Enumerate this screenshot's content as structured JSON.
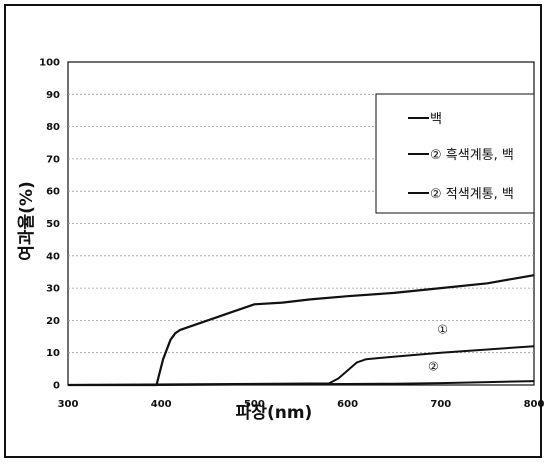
{
  "chart_data": {
    "type": "line",
    "xlabel": "파장(nm)",
    "ylabel": "여과율(%)",
    "xlim": [
      300,
      800
    ],
    "ylim": [
      0,
      100
    ],
    "xticks": [
      "300",
      "400",
      "500",
      "600",
      "700",
      "800"
    ],
    "yticks": [
      "0",
      "10",
      "20",
      "30",
      "40",
      "50",
      "60",
      "70",
      "80",
      "90",
      "100"
    ],
    "grid": "horizontal-dashed",
    "legend_position": "top-right",
    "series": [
      {
        "name": "백",
        "x": [
          300,
          395,
          402,
          410,
          415,
          420,
          440,
          460,
          480,
          500,
          530,
          560,
          600,
          650,
          700,
          750,
          780,
          800
        ],
        "y": [
          0,
          0,
          8,
          14,
          16,
          17,
          19,
          21,
          23,
          25,
          25.5,
          26.5,
          27.5,
          28.5,
          30,
          31.5,
          33,
          34
        ]
      },
      {
        "name": "② 흑색계통, 백",
        "label": "①",
        "x": [
          300,
          580,
          590,
          600,
          610,
          620,
          640,
          660,
          700,
          750,
          800
        ],
        "y": [
          0,
          0.5,
          2,
          4.5,
          7,
          8,
          8.5,
          9,
          10,
          11,
          12
        ]
      },
      {
        "name": "② 적색계통, 백",
        "label": "②",
        "x": [
          300,
          400,
          500,
          600,
          650,
          700,
          750,
          800
        ],
        "y": [
          0,
          0,
          0.2,
          0.3,
          0.4,
          0.6,
          0.9,
          1.2
        ]
      }
    ]
  }
}
